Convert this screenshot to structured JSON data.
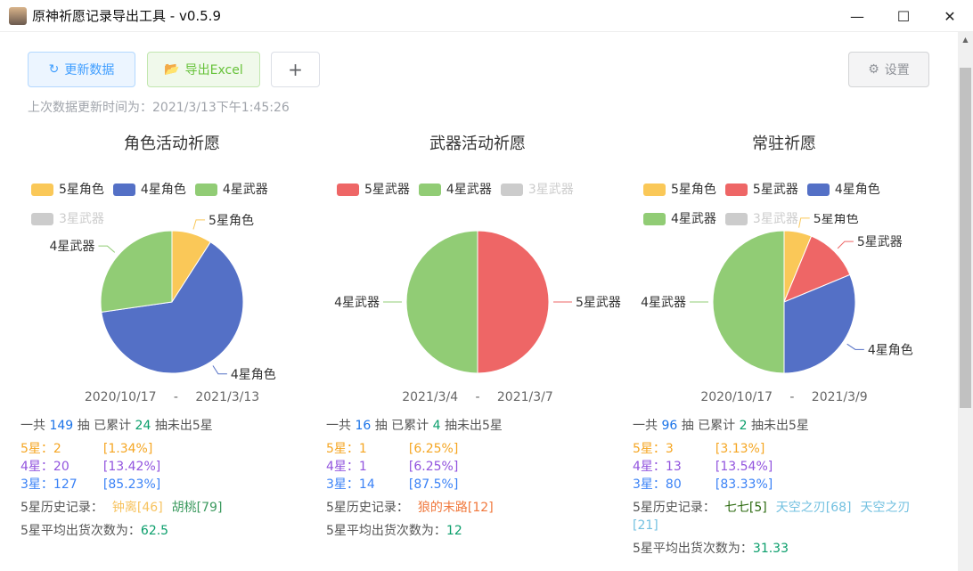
{
  "window": {
    "title": "原神祈愿记录导出工具 - v0.5.9",
    "minimize_icon": "minimize-icon",
    "maximize_icon": "maximize-icon",
    "close_icon": "close-icon"
  },
  "toolbar": {
    "refresh_label": "更新数据",
    "export_label": "导出Excel",
    "add_label": "+",
    "settings_label": "设置"
  },
  "last_updated": "上次数据更新时间为：2021/3/13下午1:45:26",
  "colors": {
    "5星角色": "#fac858",
    "4星角色": "#5470c6",
    "4星武器": "#91cc75",
    "5星武器": "#ee6666",
    "3星武器": "#cccccc"
  },
  "pools": [
    {
      "title": "角色活动祈愿",
      "legend": [
        {
          "label": "5星角色",
          "color": "#fac858",
          "on": true
        },
        {
          "label": "4星角色",
          "color": "#5470c6",
          "on": true
        },
        {
          "label": "4星武器",
          "color": "#91cc75",
          "on": true
        },
        {
          "label": "3星武器",
          "color": "#cccccc",
          "on": false
        }
      ],
      "chart_data": {
        "type": "pie",
        "slices": [
          {
            "name": "5星角色",
            "value": 2,
            "color": "#fac858"
          },
          {
            "name": "4星角色",
            "value": 14,
            "color": "#5470c6"
          },
          {
            "name": "4星武器",
            "value": 6,
            "color": "#91cc75"
          }
        ]
      },
      "start": "2020/10/17",
      "sep": "-",
      "end": "2021/3/13",
      "total_pre": "一共",
      "total": "149",
      "total_mid": "抽 已累计",
      "since": "24",
      "total_post": "抽未出5星",
      "s5_label": "5星：",
      "s5": "2",
      "s5_pct": "[1.34%]",
      "s4_label": "4星：",
      "s4": "20",
      "s4_pct": "[13.42%]",
      "s3_label": "3星：",
      "s3": "127",
      "s3_pct": "[85.23%]",
      "hist_label": "5星历史记录：",
      "history": [
        {
          "text": "钟离[46]",
          "color": "#f7c35f"
        },
        {
          "text": "胡桃[79]",
          "color": "#3c9a5f"
        }
      ],
      "avg_label": "5星平均出货次数为：",
      "avg": "62.5"
    },
    {
      "title": "武器活动祈愿",
      "legend": [
        {
          "label": "5星武器",
          "color": "#ee6666",
          "on": true
        },
        {
          "label": "4星武器",
          "color": "#91cc75",
          "on": true
        },
        {
          "label": "3星武器",
          "color": "#cccccc",
          "on": false
        }
      ],
      "chart_data": {
        "type": "pie",
        "slices": [
          {
            "name": "5星武器",
            "value": 1,
            "color": "#ee6666"
          },
          {
            "name": "4星武器",
            "value": 1,
            "color": "#91cc75"
          }
        ]
      },
      "start": "2021/3/4",
      "sep": "-",
      "end": "2021/3/7",
      "total_pre": "一共",
      "total": "16",
      "total_mid": "抽 已累计",
      "since": "4",
      "total_post": "抽未出5星",
      "s5_label": "5星：",
      "s5": "1",
      "s5_pct": "[6.25%]",
      "s4_label": "4星：",
      "s4": "1",
      "s4_pct": "[6.25%]",
      "s3_label": "3星：",
      "s3": "14",
      "s3_pct": "[87.5%]",
      "hist_label": "5星历史记录：",
      "history": [
        {
          "text": "狼的末路[12]",
          "color": "#f0783c"
        }
      ],
      "avg_label": "5星平均出货次数为：",
      "avg": "12"
    },
    {
      "title": "常驻祈愿",
      "legend": [
        {
          "label": "5星角色",
          "color": "#fac858",
          "on": true
        },
        {
          "label": "5星武器",
          "color": "#ee6666",
          "on": true
        },
        {
          "label": "4星角色",
          "color": "#5470c6",
          "on": true
        },
        {
          "label": "4星武器",
          "color": "#91cc75",
          "on": true
        },
        {
          "label": "3星武器",
          "color": "#cccccc",
          "on": false
        }
      ],
      "chart_data": {
        "type": "pie",
        "slices": [
          {
            "name": "5星角色",
            "value": 1,
            "color": "#fac858"
          },
          {
            "name": "5星武器",
            "value": 2,
            "color": "#ee6666"
          },
          {
            "name": "4星角色",
            "value": 5,
            "color": "#5470c6"
          },
          {
            "name": "4星武器",
            "value": 8,
            "color": "#91cc75"
          }
        ]
      },
      "start": "2020/10/17",
      "sep": "-",
      "end": "2021/3/9",
      "total_pre": "一共",
      "total": "96",
      "total_mid": "抽 已累计",
      "since": "2",
      "total_post": "抽未出5星",
      "s5_label": "5星：",
      "s5": "3",
      "s5_pct": "[3.13%]",
      "s4_label": "4星：",
      "s4": "13",
      "s4_pct": "[13.54%]",
      "s3_label": "3星：",
      "s3": "80",
      "s3_pct": "[83.33%]",
      "hist_label": "5星历史记录：",
      "history": [
        {
          "text": "七七[5]",
          "color": "#2e6b12"
        },
        {
          "text": "天空之刃[68]",
          "color": "#72c0e0"
        },
        {
          "text": "天空之刃[21]",
          "color": "#72c0e0"
        }
      ],
      "avg_label": "5星平均出货次数为：",
      "avg": "31.33"
    }
  ]
}
